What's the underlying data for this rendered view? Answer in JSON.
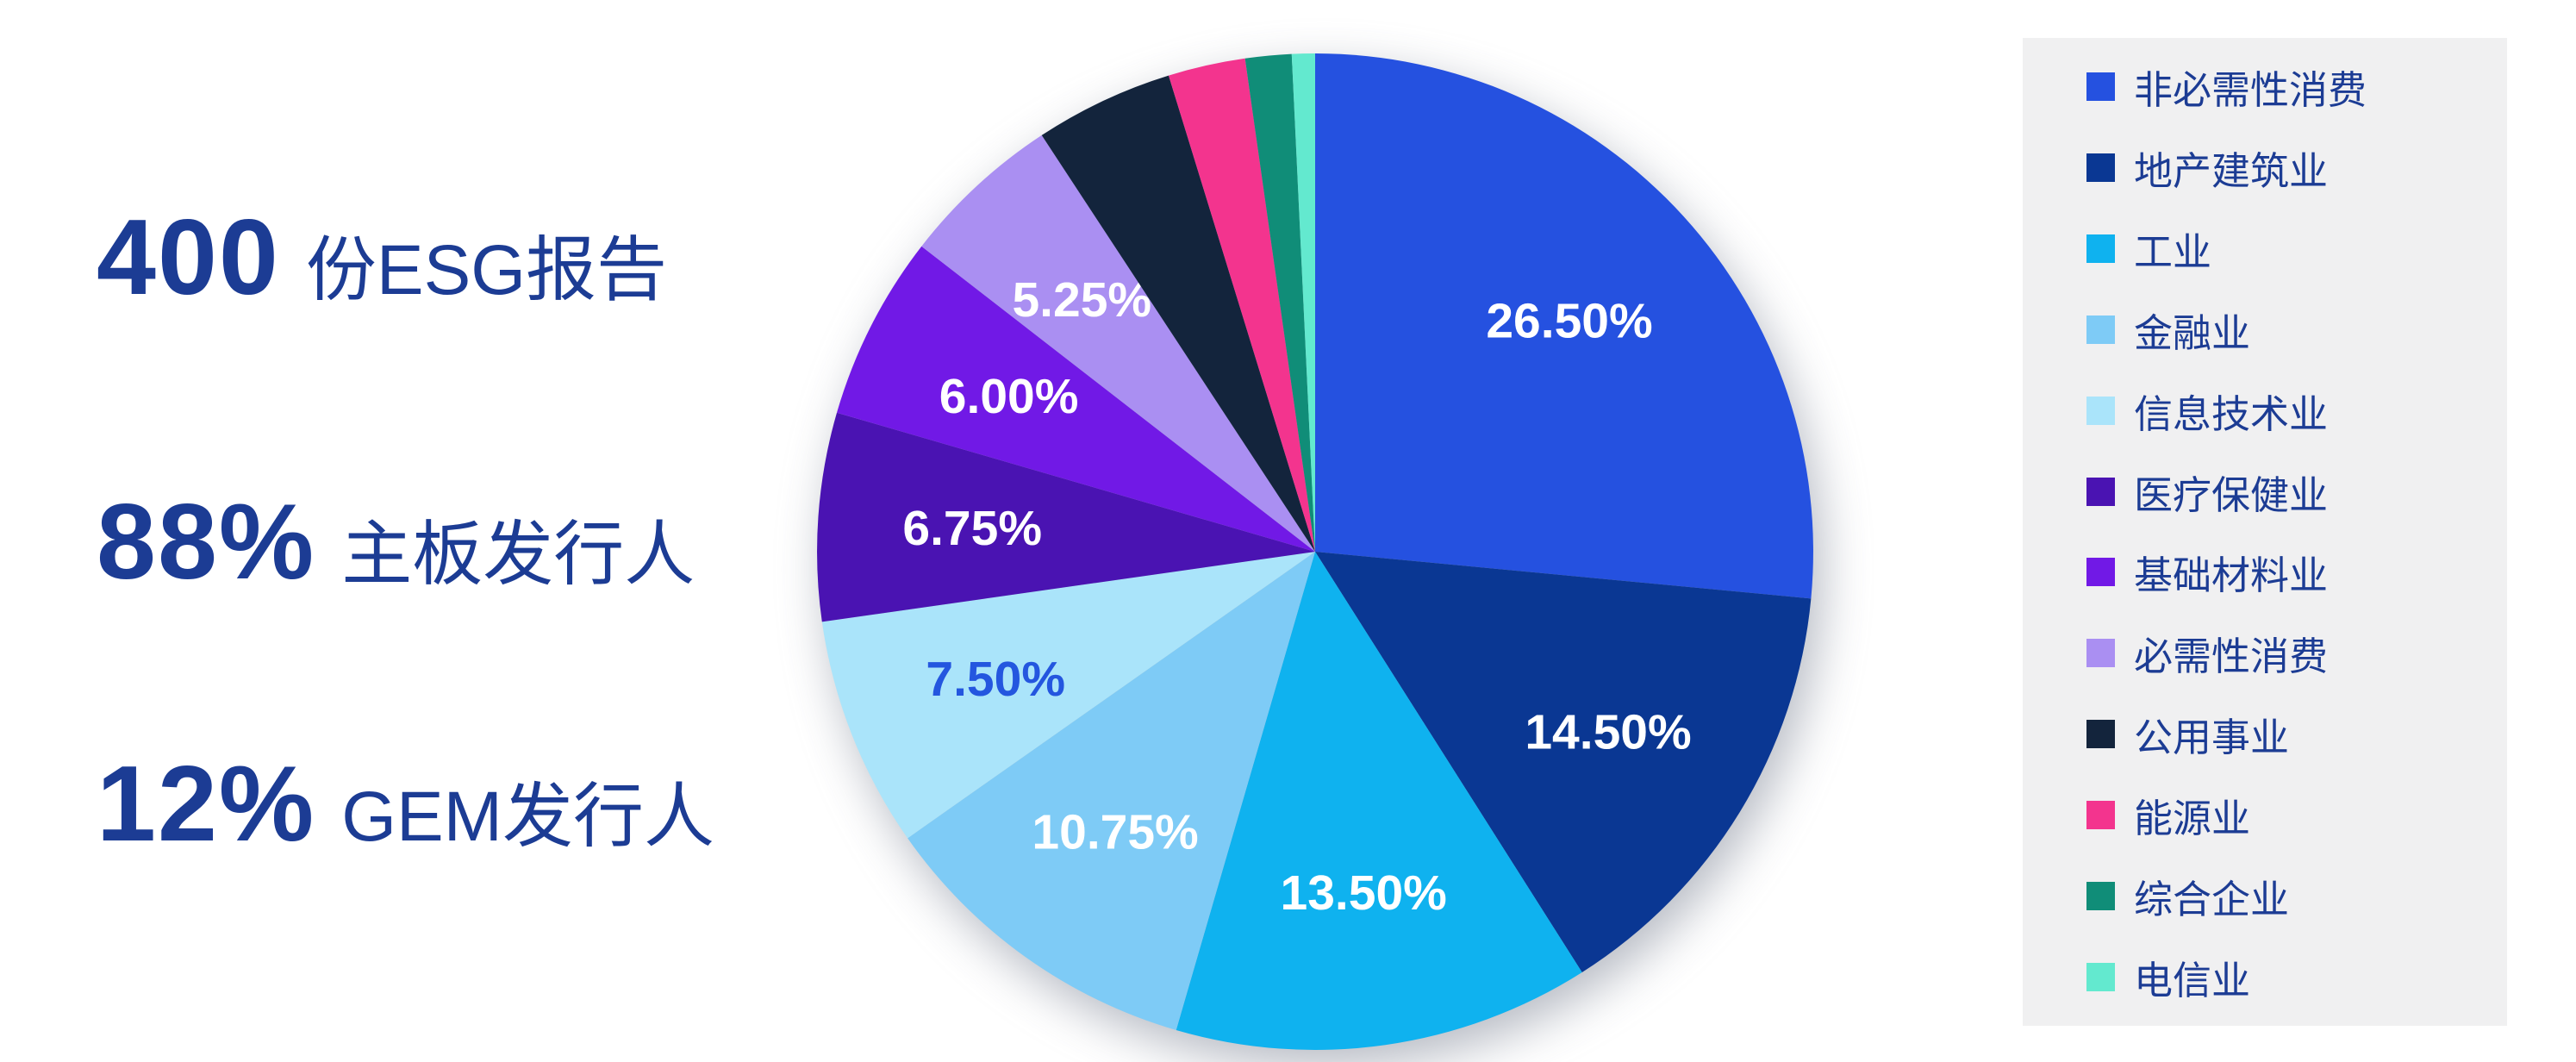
{
  "page": {
    "background": "#ffffff",
    "text_color": "#1c3c94",
    "legend_background": "#f0f0f1"
  },
  "stats": [
    {
      "value": "400",
      "label": "份ESG报告"
    },
    {
      "value": "88%",
      "label": "主板发行人"
    },
    {
      "value": "12%",
      "label": "GEM发行人"
    }
  ],
  "chart_data": {
    "type": "pie",
    "title": "",
    "unit": "%",
    "start_angle_deg": 0,
    "direction": "clockwise",
    "legend_position": "right",
    "labels_shown_for_pct_at_least": 5.25,
    "slices": [
      {
        "name": "非必需性消费",
        "value": 26.5,
        "label": "26.50%",
        "color": "#2551e0",
        "label_color": "#ffffff"
      },
      {
        "name": "地产建筑业",
        "value": 14.5,
        "label": "14.50%",
        "color": "#0a3793",
        "label_color": "#ffffff"
      },
      {
        "name": "工业",
        "value": 13.5,
        "label": "13.50%",
        "color": "#0fb2ef",
        "label_color": "#ffffff"
      },
      {
        "name": "金融业",
        "value": 10.75,
        "label": "10.75%",
        "color": "#7ecbf6",
        "label_color": "#ffffff"
      },
      {
        "name": "信息技术业",
        "value": 7.5,
        "label": "7.50%",
        "color": "#aae4fa",
        "label_color": "#2456df"
      },
      {
        "name": "医疗保健业",
        "value": 6.75,
        "label": "6.75%",
        "color": "#4a13b2",
        "label_color": "#ffffff"
      },
      {
        "name": "基础材料业",
        "value": 6.0,
        "label": "6.00%",
        "color": "#7119e6",
        "label_color": "#ffffff"
      },
      {
        "name": "必需性消费",
        "value": 5.25,
        "label": "5.25%",
        "color": "#aa8ff2",
        "label_color": "#ffffff"
      },
      {
        "name": "公用事业",
        "value": 4.5,
        "label": "",
        "color": "#13243c",
        "label_color": "#ffffff"
      },
      {
        "name": "能源业",
        "value": 2.5,
        "label": "",
        "color": "#f3348e",
        "label_color": "#ffffff"
      },
      {
        "name": "综合企业",
        "value": 1.5,
        "label": "",
        "color": "#108d78",
        "label_color": "#ffffff"
      },
      {
        "name": "电信业",
        "value": 0.75,
        "label": "",
        "color": "#63e9cf",
        "label_color": "#ffffff"
      }
    ]
  }
}
